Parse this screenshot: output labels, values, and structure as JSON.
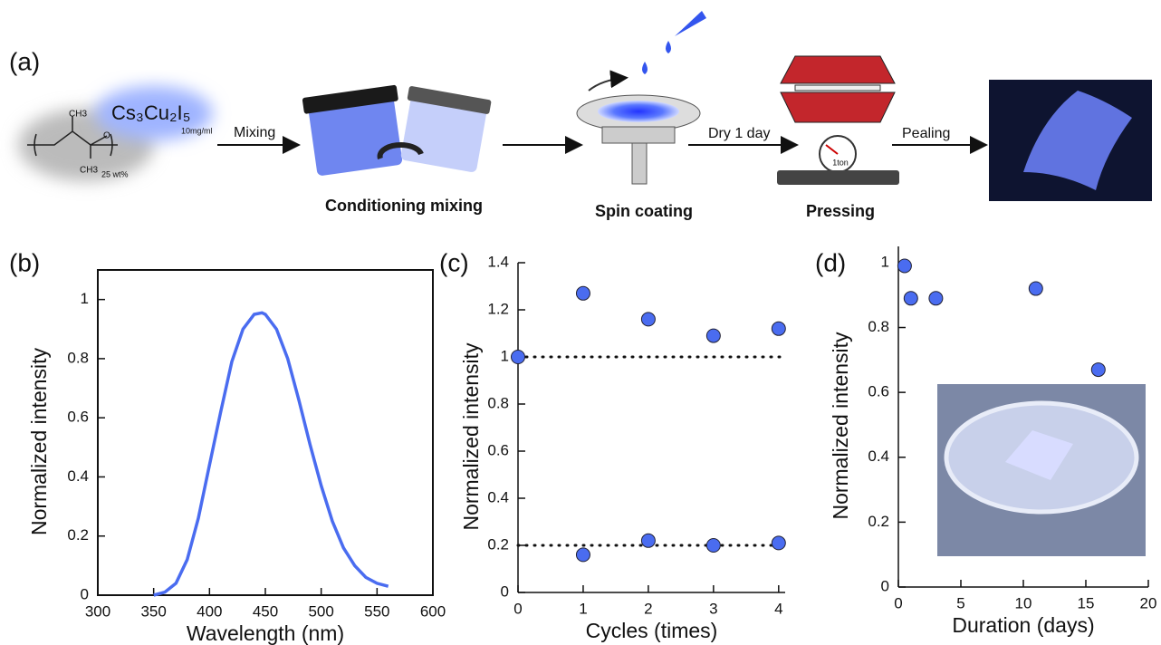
{
  "diagram": {
    "panel": "(a)",
    "compound": "Cs₃Cu₂I₅",
    "concentration": "10mg/ml",
    "polymer": {
      "methyl": "CH3",
      "oxygen": "O",
      "methoxy": "CH3",
      "loading": "25 wt%"
    },
    "steps": {
      "mixing": "Mixing",
      "conditioning": "Conditioning mixing",
      "spin": "Spin coating",
      "dry": "Dry 1 day",
      "pressing": "Pressing",
      "load": "1ton",
      "pealing": "Pealing"
    }
  },
  "chart_data": [
    {
      "type": "line",
      "panel": "(b)",
      "x_label": "Wavelength (nm)",
      "y_label": "Normalized intensity",
      "color": "#4a6cf0",
      "x": [
        350,
        360,
        370,
        380,
        390,
        400,
        410,
        420,
        430,
        440,
        447,
        450,
        460,
        470,
        480,
        490,
        500,
        510,
        520,
        530,
        540,
        550,
        560
      ],
      "values": [
        0,
        0.01,
        0.04,
        0.12,
        0.26,
        0.44,
        0.62,
        0.79,
        0.9,
        0.95,
        0.955,
        0.95,
        0.9,
        0.8,
        0.66,
        0.51,
        0.37,
        0.25,
        0.16,
        0.1,
        0.06,
        0.04,
        0.03
      ],
      "xlim": [
        300,
        600
      ],
      "xticks": [
        300,
        350,
        400,
        450,
        500,
        550,
        600
      ],
      "ylim": [
        0,
        1.1
      ],
      "yticks": [
        0,
        0.2,
        0.4,
        0.6,
        0.8,
        1
      ],
      "frame": true
    },
    {
      "type": "scatter",
      "panel": "(c)",
      "x_label": "Cycles (times)",
      "y_label": "Normalized intensity",
      "color": "#4a6cf0",
      "x": [
        0,
        1,
        1,
        2,
        2,
        3,
        3,
        4,
        4
      ],
      "values": [
        1,
        1.27,
        0.16,
        1.16,
        0.22,
        1.09,
        0.2,
        1.12,
        0.21
      ],
      "reference_lines": [
        1,
        0.2
      ],
      "xlim": [
        0,
        4.1
      ],
      "xticks": [
        0,
        1,
        2,
        3,
        4
      ],
      "ylim": [
        0,
        1.4
      ],
      "yticks": [
        0,
        0.2,
        0.4,
        0.6,
        0.8,
        1,
        1.2,
        1.4
      ],
      "frame": false
    },
    {
      "type": "scatter",
      "panel": "(d)",
      "x_label": "Duration (days)",
      "y_label": "Normalized intensity",
      "color": "#4a6cf0",
      "x": [
        0.5,
        1,
        3,
        11,
        16
      ],
      "values": [
        0.99,
        0.89,
        0.89,
        0.92,
        0.67
      ],
      "xlim": [
        0,
        20
      ],
      "xticks": [
        0,
        5,
        10,
        15,
        20
      ],
      "ylim": [
        0,
        1.05
      ],
      "yticks": [
        0,
        0.2,
        0.4,
        0.6,
        0.8,
        1
      ],
      "frame": false
    }
  ]
}
